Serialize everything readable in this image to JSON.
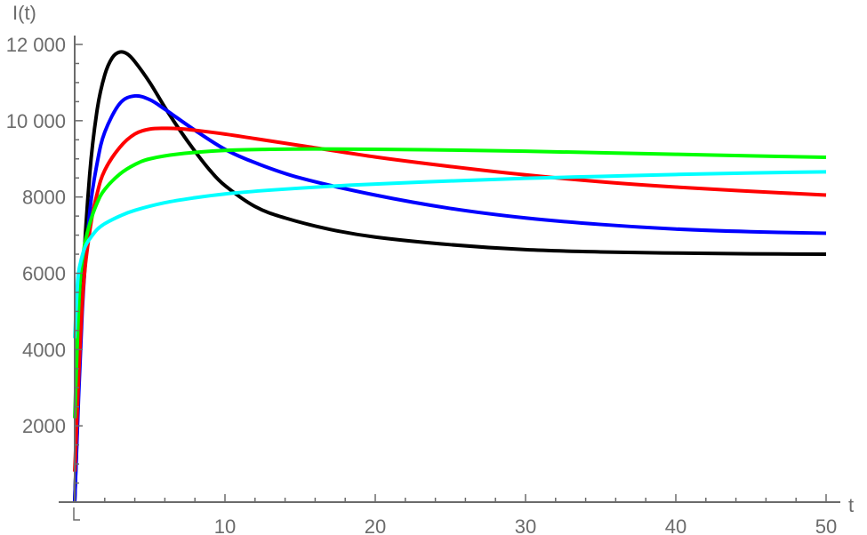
{
  "chart_data": {
    "type": "line",
    "title": "",
    "xlabel": "t",
    "ylabel": "I(t)",
    "xlim": [
      0,
      50
    ],
    "ylim": [
      0,
      12000
    ],
    "grid": false,
    "legend": "none",
    "x_ticks": [
      10,
      20,
      30,
      40,
      50
    ],
    "x_tick_labels": [
      "10",
      "20",
      "30",
      "40",
      "50"
    ],
    "y_ticks": [
      2000,
      4000,
      6000,
      8000,
      10000,
      12000
    ],
    "y_tick_labels": [
      "2000",
      "4000",
      "6000",
      "8000",
      "10 000",
      "12 000"
    ],
    "series": [
      {
        "name": "black",
        "color": "#000000",
        "x": [
          0,
          0.5,
          1,
          1.5,
          2,
          2.5,
          3,
          3.5,
          4,
          5,
          6,
          7,
          8,
          9,
          10,
          12,
          14,
          17,
          20,
          25,
          30,
          35,
          40,
          45,
          50
        ],
        "values": [
          0,
          5500,
          8600,
          10300,
          11200,
          11650,
          11800,
          11750,
          11550,
          11000,
          10350,
          9750,
          9200,
          8700,
          8300,
          7750,
          7450,
          7150,
          6950,
          6750,
          6620,
          6560,
          6530,
          6510,
          6500
        ]
      },
      {
        "name": "blue",
        "color": "#0000ff",
        "x": [
          0,
          0.5,
          1,
          1.5,
          2,
          3,
          4,
          5,
          6,
          8,
          10,
          12,
          15,
          20,
          25,
          30,
          35,
          40,
          45,
          50
        ],
        "values": [
          0,
          5000,
          7600,
          8900,
          9700,
          10450,
          10650,
          10550,
          10300,
          9750,
          9250,
          8900,
          8500,
          8050,
          7700,
          7450,
          7280,
          7160,
          7090,
          7050
        ]
      },
      {
        "name": "red",
        "color": "#ff0000",
        "x": [
          0,
          0.5,
          1,
          1.5,
          2,
          3,
          4,
          5,
          6,
          7,
          8,
          10,
          12,
          15,
          20,
          25,
          30,
          35,
          40,
          45,
          50
        ],
        "values": [
          800,
          5200,
          7100,
          8100,
          8700,
          9300,
          9650,
          9780,
          9800,
          9790,
          9750,
          9650,
          9530,
          9350,
          9050,
          8800,
          8580,
          8400,
          8260,
          8150,
          8050
        ]
      },
      {
        "name": "green",
        "color": "#00ff00",
        "x": [
          0,
          0.3,
          0.6,
          1,
          1.5,
          2,
          3,
          4,
          5,
          7,
          10,
          13,
          16,
          20,
          25,
          30,
          35,
          40,
          45,
          50
        ],
        "values": [
          2200,
          5400,
          6600,
          7300,
          7850,
          8200,
          8600,
          8850,
          9000,
          9130,
          9220,
          9250,
          9260,
          9250,
          9230,
          9200,
          9160,
          9120,
          9080,
          9040
        ]
      },
      {
        "name": "cyan",
        "color": "#00ffff",
        "x": [
          0,
          0.2,
          0.4,
          0.7,
          1,
          1.5,
          2,
          3,
          4,
          6,
          8,
          10,
          13,
          17,
          20,
          25,
          30,
          35,
          40,
          45,
          50
        ],
        "values": [
          4300,
          5800,
          6300,
          6700,
          6900,
          7150,
          7300,
          7500,
          7650,
          7850,
          7980,
          8080,
          8180,
          8280,
          8340,
          8420,
          8490,
          8540,
          8590,
          8630,
          8660
        ]
      }
    ]
  },
  "axes": {
    "x_label": "t",
    "y_label": "I(t)"
  }
}
